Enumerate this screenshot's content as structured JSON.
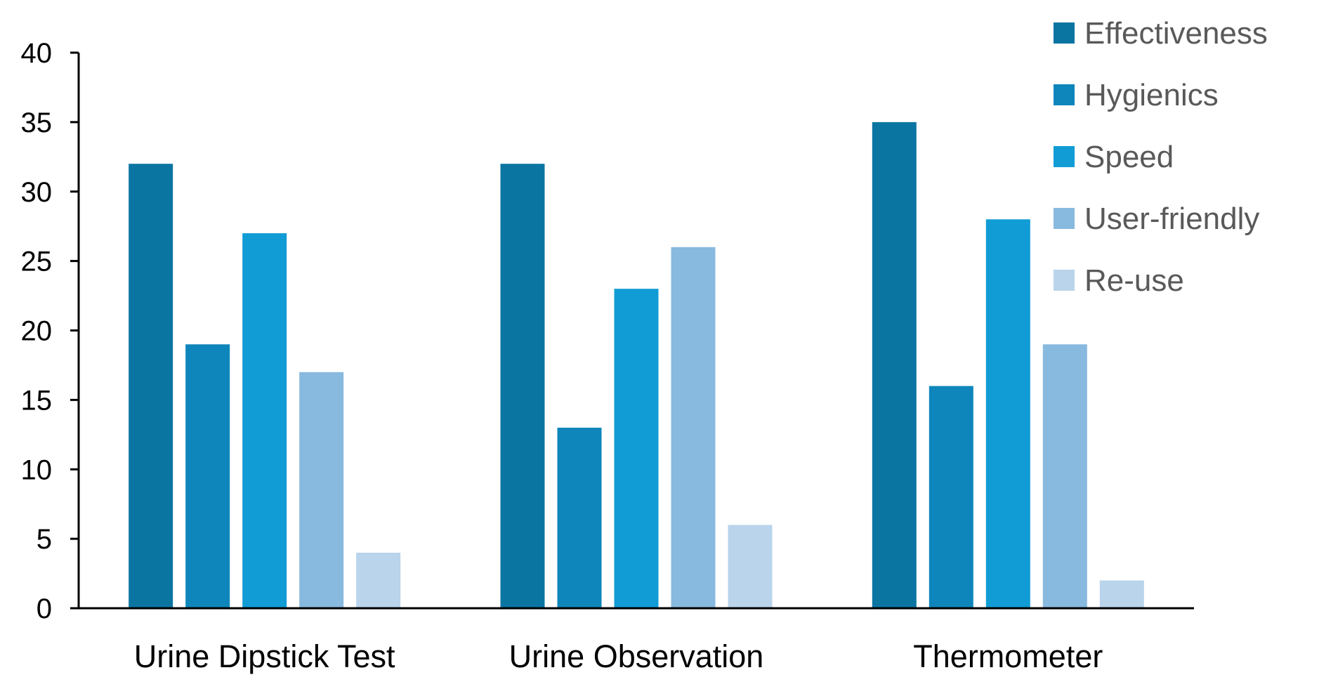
{
  "chart_data": {
    "type": "bar",
    "title": "",
    "xlabel": "",
    "ylabel": "",
    "categories": [
      "Urine Dipstick Test",
      "Urine Observation",
      "Thermometer"
    ],
    "series": [
      {
        "name": "Effectiveness",
        "values": [
          32,
          32,
          35
        ],
        "color": "#0B75A2"
      },
      {
        "name": "Hygienics",
        "values": [
          19,
          13,
          16
        ],
        "color": "#0E86BB"
      },
      {
        "name": "Speed",
        "values": [
          27,
          23,
          28
        ],
        "color": "#119CD5"
      },
      {
        "name": "User-friendly",
        "values": [
          17,
          26,
          19
        ],
        "color": "#88B9DF"
      },
      {
        "name": "Re-use",
        "values": [
          4,
          6,
          2
        ],
        "color": "#B9D4EB"
      }
    ],
    "ylim": [
      0,
      40
    ],
    "yticks": [
      "0",
      "5",
      "10",
      "15",
      "20",
      "25",
      "30",
      "35",
      "40"
    ],
    "grid": false,
    "legend_position": "top-right"
  }
}
